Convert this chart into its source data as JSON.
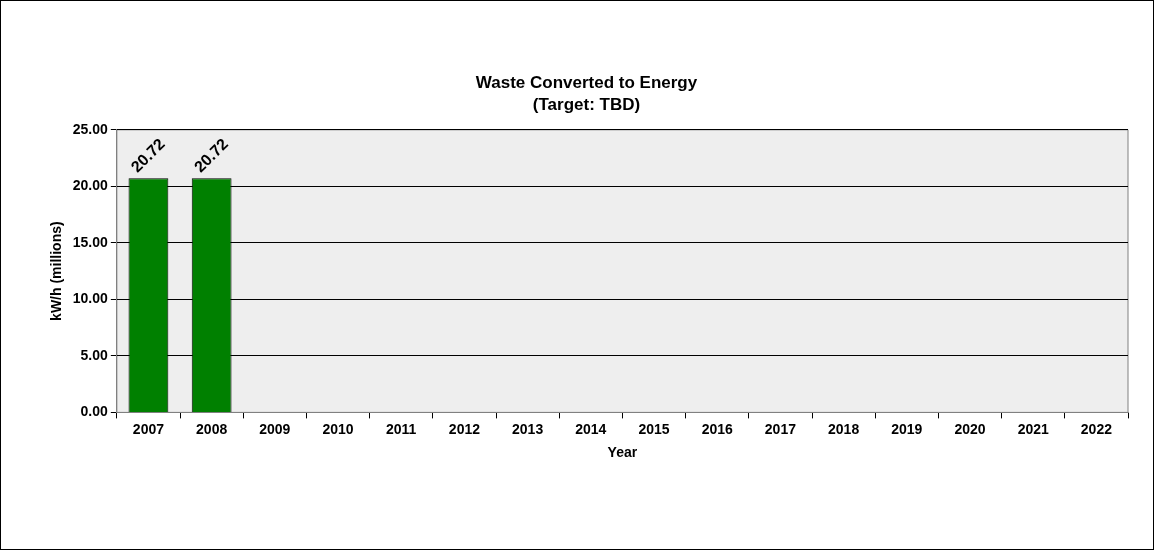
{
  "chart_data": {
    "type": "bar",
    "title": "Waste Converted to Energy",
    "subtitle": "(Target: TBD)",
    "xlabel": "Year",
    "ylabel": "kW/h (millions)",
    "categories": [
      "2007",
      "2008",
      "2009",
      "2010",
      "2011",
      "2012",
      "2013",
      "2014",
      "2015",
      "2016",
      "2017",
      "2018",
      "2019",
      "2020",
      "2021",
      "2022"
    ],
    "values": [
      20.72,
      20.72,
      null,
      null,
      null,
      null,
      null,
      null,
      null,
      null,
      null,
      null,
      null,
      null,
      null,
      null
    ],
    "color": "#008000",
    "ylim": [
      0,
      25
    ],
    "yticks": [
      {
        "value": 0,
        "label": "0.00"
      },
      {
        "value": 5,
        "label": "5.00"
      },
      {
        "value": 10,
        "label": "10.00"
      },
      {
        "value": 15,
        "label": "15.00"
      },
      {
        "value": 20,
        "label": "20.00"
      },
      {
        "value": 25,
        "label": "25.00"
      }
    ],
    "grid": "y",
    "legend": false,
    "data_labels": true
  }
}
